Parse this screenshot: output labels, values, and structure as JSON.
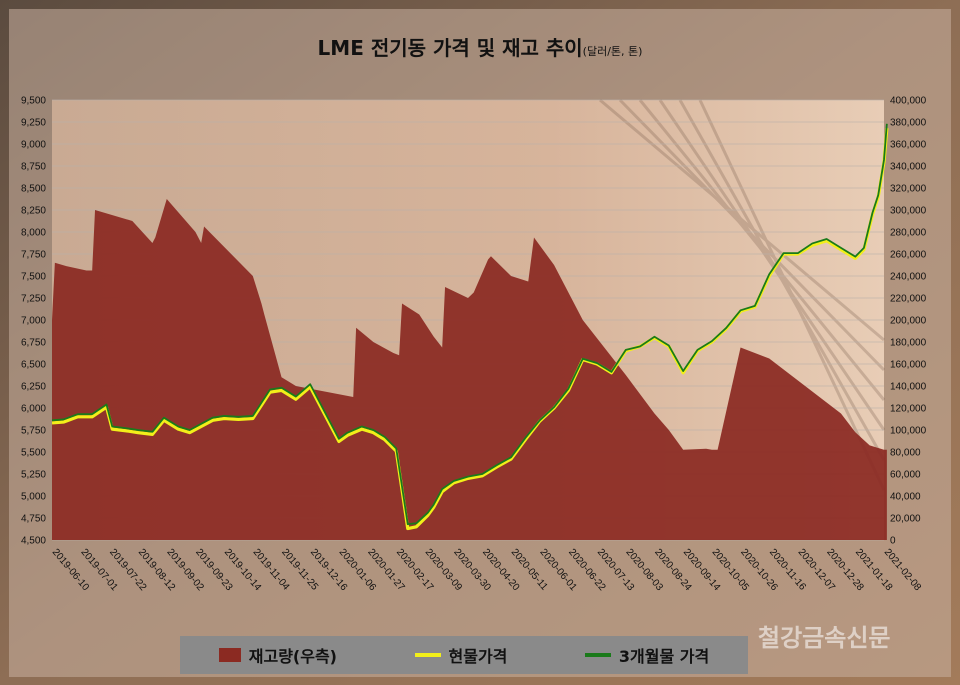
{
  "title": "LME 전기동 가격 및 재고 추이",
  "title_unit": "(달러/톤, 톤)",
  "watermark": "철강금속신문",
  "colors": {
    "inventory": "#8b2a22",
    "spot": "#f2ef1a",
    "three_month": "#1a7a1a"
  },
  "chart_data": {
    "type": "line",
    "title": "LME 전기동 가격 및 재고 추이",
    "y_left": {
      "min": 4500,
      "max": 9500,
      "step": 250
    },
    "y_right": {
      "min": 0,
      "max": 400000,
      "step": 20000
    },
    "x_ticks": [
      "2019-06-10",
      "2019-07-01",
      "2019-07-22",
      "2019-08-12",
      "2019-09-02",
      "2019-09-23",
      "2019-10-14",
      "2019-11-04",
      "2019-11-25",
      "2019-12-16",
      "2020-01-06",
      "2020-01-27",
      "2020-02-17",
      "2020-03-09",
      "2020-03-30",
      "2020-04-20",
      "2020-05-11",
      "2020-06-01",
      "2020-06-22",
      "2020-07-13",
      "2020-08-03",
      "2020-08-24",
      "2020-09-14",
      "2020-10-05",
      "2020-10-26",
      "2020-11-16",
      "2020-12-07",
      "2020-12-28",
      "2021-01-18",
      "2021-02-08"
    ],
    "left_tick_labels": [
      "4,500",
      "4,750",
      "5,000",
      "5,250",
      "5,500",
      "5,750",
      "6,000",
      "6,250",
      "6,500",
      "6,750",
      "7,000",
      "7,250",
      "7,500",
      "7,750",
      "8,000",
      "8,250",
      "8,500",
      "8,750",
      "9,000",
      "9,250",
      "9,500"
    ],
    "right_tick_labels": [
      "0",
      "20,000",
      "40,000",
      "60,000",
      "80,000",
      "100,000",
      "120,000",
      "140,000",
      "160,000",
      "180,000",
      "200,000",
      "220,000",
      "240,000",
      "260,000",
      "280,000",
      "300,000",
      "320,000",
      "340,000",
      "360,000",
      "380,000",
      "400,000"
    ],
    "series": [
      {
        "name": "재고량(우측)",
        "axis": "right",
        "kind": "area",
        "x": [
          0,
          0.1,
          0.5,
          1.2,
          1.4,
          1.5,
          2.8,
          3.5,
          3.6,
          4.0,
          5.0,
          5.2,
          5.3,
          7.0,
          7.3,
          7.4,
          8.0,
          8.5,
          9.5,
          10.5,
          10.6,
          11.2,
          11.9,
          12.1,
          12.2,
          12.8,
          13.3,
          13.6,
          13.7,
          14.5,
          14.7,
          15.2,
          15.3,
          16.0,
          16.6,
          16.8,
          17.5,
          18.5,
          20.0,
          21.0,
          21.5,
          22.0,
          22.8,
          23.0,
          23.2,
          24.0,
          25.0,
          26.0,
          27.0,
          27.5,
          28.0,
          28.5,
          29.0,
          29.1
        ],
        "values": [
          200000,
          252000,
          249000,
          245000,
          245000,
          300000,
          290000,
          270000,
          275000,
          310000,
          280000,
          270000,
          285000,
          240000,
          215000,
          205000,
          148000,
          140000,
          135000,
          130000,
          193000,
          180000,
          170000,
          168000,
          215000,
          205000,
          185000,
          175000,
          230000,
          220000,
          225000,
          255000,
          258000,
          240000,
          235000,
          275000,
          250000,
          200000,
          150000,
          115000,
          100000,
          82000,
          83000,
          82000,
          82000,
          175000,
          165000,
          145000,
          125000,
          115000,
          98000,
          86000,
          82000,
          82000
        ]
      },
      {
        "name": "현물가격",
        "axis": "left",
        "kind": "line",
        "x": [
          0,
          0.4,
          0.9,
          1.4,
          1.9,
          2.1,
          2.6,
          3.0,
          3.5,
          3.9,
          4.4,
          4.8,
          5.2,
          5.6,
          6.0,
          6.5,
          7.0,
          7.6,
          8.0,
          8.5,
          9.0,
          9.5,
          10.0,
          10.3,
          10.8,
          11.2,
          11.6,
          12.0,
          12.4,
          12.7,
          13.1,
          13.3,
          13.6,
          14.0,
          14.5,
          15.0,
          15.5,
          16.0,
          16.5,
          17.0,
          17.5,
          18.0,
          18.5,
          19.0,
          19.5,
          20.0,
          20.5,
          21.0,
          21.5,
          22.0,
          22.5,
          23.0,
          23.5,
          24.0,
          24.5,
          25.0,
          25.5,
          26.0,
          26.5,
          27.0,
          27.5,
          28.0,
          28.3,
          28.6,
          28.8,
          29.0,
          29.1
        ],
        "values": [
          5830,
          5840,
          5900,
          5900,
          6010,
          5760,
          5740,
          5720,
          5700,
          5860,
          5760,
          5720,
          5790,
          5860,
          5880,
          5870,
          5880,
          6180,
          6200,
          6100,
          6240,
          5930,
          5620,
          5690,
          5760,
          5720,
          5640,
          5510,
          4630,
          4650,
          4780,
          4870,
          5050,
          5150,
          5200,
          5230,
          5330,
          5420,
          5640,
          5850,
          6000,
          6200,
          6550,
          6500,
          6400,
          6650,
          6700,
          6800,
          6700,
          6400,
          6650,
          6750,
          6900,
          7100,
          7150,
          7500,
          7750,
          7750,
          7850,
          7900,
          7800,
          7700,
          7800,
          8200,
          8400,
          8800,
          9180
        ]
      },
      {
        "name": "3개월물 가격",
        "axis": "left",
        "kind": "line",
        "x": [
          0,
          0.4,
          0.9,
          1.4,
          1.9,
          2.1,
          2.6,
          3.0,
          3.5,
          3.9,
          4.4,
          4.8,
          5.2,
          5.6,
          6.0,
          6.5,
          7.0,
          7.6,
          8.0,
          8.5,
          9.0,
          9.5,
          10.0,
          10.3,
          10.8,
          11.2,
          11.6,
          12.0,
          12.4,
          12.7,
          13.1,
          13.3,
          13.6,
          14.0,
          14.5,
          15.0,
          15.5,
          16.0,
          16.5,
          17.0,
          17.5,
          18.0,
          18.5,
          19.0,
          19.5,
          20.0,
          20.5,
          21.0,
          21.5,
          22.0,
          22.5,
          23.0,
          23.5,
          24.0,
          24.5,
          25.0,
          25.5,
          26.0,
          26.5,
          27.0,
          27.5,
          28.0,
          28.3,
          28.6,
          28.8,
          29.0,
          29.1
        ],
        "values": [
          5860,
          5870,
          5930,
          5930,
          6040,
          5790,
          5770,
          5750,
          5730,
          5890,
          5790,
          5750,
          5820,
          5890,
          5910,
          5900,
          5910,
          6210,
          6230,
          6130,
          6270,
          5960,
          5650,
          5720,
          5790,
          5750,
          5670,
          5540,
          4680,
          4690,
          4810,
          4900,
          5080,
          5170,
          5220,
          5250,
          5350,
          5440,
          5660,
          5860,
          6010,
          6220,
          6560,
          6510,
          6410,
          6660,
          6700,
          6810,
          6710,
          6420,
          6660,
          6760,
          6910,
          7110,
          7160,
          7520,
          7760,
          7760,
          7870,
          7920,
          7820,
          7720,
          7820,
          8220,
          8420,
          8820,
          9230
        ]
      }
    ]
  }
}
